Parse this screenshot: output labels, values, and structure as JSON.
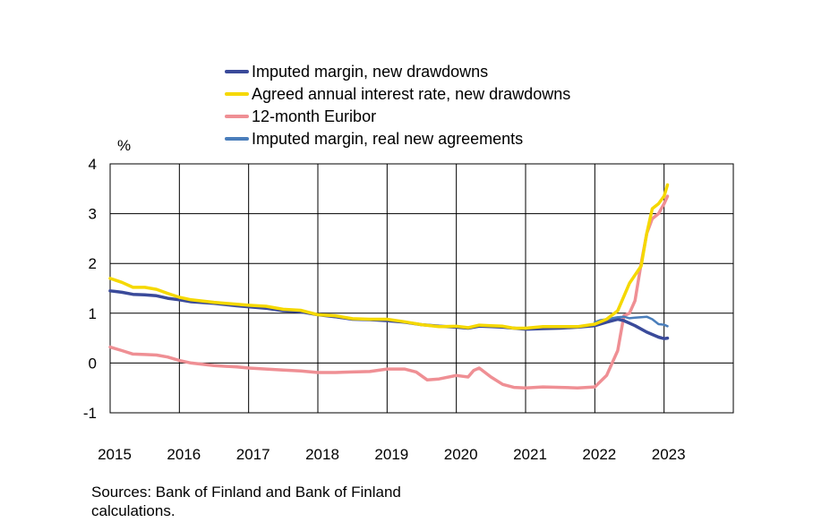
{
  "chart_data": {
    "type": "line",
    "ylabel": "%",
    "ylim": [
      -1,
      4
    ],
    "yticks": [
      4,
      3,
      2,
      1,
      0,
      -1
    ],
    "xlim": [
      2015,
      2024
    ],
    "xticks": [
      "2015",
      "2016",
      "2017",
      "2018",
      "2019",
      "2020",
      "2021",
      "2022",
      "2023"
    ],
    "grid": true,
    "legend": "top",
    "series": [
      {
        "name": "Imputed margin, new drawdowns",
        "color": "#3a4a9a",
        "points": [
          [
            2015.0,
            1.45
          ],
          [
            2015.17,
            1.42
          ],
          [
            2015.33,
            1.38
          ],
          [
            2015.5,
            1.37
          ],
          [
            2015.67,
            1.35
          ],
          [
            2015.83,
            1.3
          ],
          [
            2016.0,
            1.27
          ],
          [
            2016.17,
            1.23
          ],
          [
            2016.5,
            1.2
          ],
          [
            2016.83,
            1.15
          ],
          [
            2017.0,
            1.13
          ],
          [
            2017.25,
            1.1
          ],
          [
            2017.5,
            1.05
          ],
          [
            2017.75,
            1.03
          ],
          [
            2018.0,
            0.97
          ],
          [
            2018.25,
            0.93
          ],
          [
            2018.5,
            0.88
          ],
          [
            2018.75,
            0.87
          ],
          [
            2019.0,
            0.85
          ],
          [
            2019.25,
            0.82
          ],
          [
            2019.5,
            0.77
          ],
          [
            2019.75,
            0.74
          ],
          [
            2020.0,
            0.72
          ],
          [
            2020.17,
            0.7
          ],
          [
            2020.33,
            0.74
          ],
          [
            2020.5,
            0.73
          ],
          [
            2020.67,
            0.72
          ],
          [
            2020.83,
            0.7
          ],
          [
            2021.0,
            0.68
          ],
          [
            2021.25,
            0.69
          ],
          [
            2021.5,
            0.7
          ],
          [
            2021.75,
            0.72
          ],
          [
            2022.0,
            0.75
          ],
          [
            2022.17,
            0.82
          ],
          [
            2022.33,
            0.88
          ],
          [
            2022.42,
            0.85
          ],
          [
            2022.58,
            0.75
          ],
          [
            2022.75,
            0.62
          ],
          [
            2022.92,
            0.52
          ],
          [
            2023.0,
            0.49
          ],
          [
            2023.05,
            0.5
          ]
        ]
      },
      {
        "name": "Agreed annual interest rate, new drawdowns",
        "color": "#f5d800",
        "points": [
          [
            2015.0,
            1.7
          ],
          [
            2015.17,
            1.62
          ],
          [
            2015.33,
            1.52
          ],
          [
            2015.5,
            1.52
          ],
          [
            2015.67,
            1.48
          ],
          [
            2015.83,
            1.4
          ],
          [
            2016.0,
            1.32
          ],
          [
            2016.17,
            1.27
          ],
          [
            2016.5,
            1.22
          ],
          [
            2016.83,
            1.18
          ],
          [
            2017.0,
            1.16
          ],
          [
            2017.25,
            1.14
          ],
          [
            2017.5,
            1.08
          ],
          [
            2017.75,
            1.06
          ],
          [
            2018.0,
            0.97
          ],
          [
            2018.25,
            0.95
          ],
          [
            2018.5,
            0.89
          ],
          [
            2018.75,
            0.88
          ],
          [
            2019.0,
            0.88
          ],
          [
            2019.25,
            0.83
          ],
          [
            2019.5,
            0.77
          ],
          [
            2019.75,
            0.73
          ],
          [
            2020.0,
            0.74
          ],
          [
            2020.17,
            0.71
          ],
          [
            2020.33,
            0.76
          ],
          [
            2020.5,
            0.75
          ],
          [
            2020.67,
            0.74
          ],
          [
            2020.83,
            0.7
          ],
          [
            2021.0,
            0.7
          ],
          [
            2021.25,
            0.73
          ],
          [
            2021.5,
            0.73
          ],
          [
            2021.75,
            0.73
          ],
          [
            2022.0,
            0.78
          ],
          [
            2022.17,
            0.88
          ],
          [
            2022.33,
            1.05
          ],
          [
            2022.5,
            1.6
          ],
          [
            2022.67,
            1.95
          ],
          [
            2022.75,
            2.6
          ],
          [
            2022.83,
            3.1
          ],
          [
            2022.92,
            3.2
          ],
          [
            2023.0,
            3.35
          ],
          [
            2023.05,
            3.58
          ]
        ]
      },
      {
        "name": "12-month Euribor",
        "color": "#ef8f94",
        "points": [
          [
            2015.0,
            0.32
          ],
          [
            2015.17,
            0.25
          ],
          [
            2015.33,
            0.18
          ],
          [
            2015.5,
            0.17
          ],
          [
            2015.67,
            0.16
          ],
          [
            2015.83,
            0.12
          ],
          [
            2016.0,
            0.05
          ],
          [
            2016.17,
            0.0
          ],
          [
            2016.5,
            -0.05
          ],
          [
            2016.83,
            -0.08
          ],
          [
            2017.0,
            -0.1
          ],
          [
            2017.25,
            -0.12
          ],
          [
            2017.5,
            -0.14
          ],
          [
            2017.75,
            -0.16
          ],
          [
            2018.0,
            -0.19
          ],
          [
            2018.25,
            -0.19
          ],
          [
            2018.5,
            -0.18
          ],
          [
            2018.75,
            -0.17
          ],
          [
            2019.0,
            -0.12
          ],
          [
            2019.25,
            -0.12
          ],
          [
            2019.42,
            -0.18
          ],
          [
            2019.58,
            -0.34
          ],
          [
            2019.75,
            -0.32
          ],
          [
            2020.0,
            -0.25
          ],
          [
            2020.17,
            -0.28
          ],
          [
            2020.25,
            -0.15
          ],
          [
            2020.33,
            -0.1
          ],
          [
            2020.5,
            -0.28
          ],
          [
            2020.67,
            -0.43
          ],
          [
            2020.83,
            -0.49
          ],
          [
            2021.0,
            -0.5
          ],
          [
            2021.25,
            -0.48
          ],
          [
            2021.5,
            -0.49
          ],
          [
            2021.75,
            -0.5
          ],
          [
            2022.0,
            -0.48
          ],
          [
            2022.17,
            -0.25
          ],
          [
            2022.33,
            0.25
          ],
          [
            2022.42,
            0.95
          ],
          [
            2022.5,
            1.0
          ],
          [
            2022.58,
            1.25
          ],
          [
            2022.67,
            2.0
          ],
          [
            2022.75,
            2.6
          ],
          [
            2022.83,
            2.9
          ],
          [
            2022.92,
            3.0
          ],
          [
            2023.0,
            3.2
          ],
          [
            2023.05,
            3.35
          ]
        ]
      },
      {
        "name": "Imputed margin, real new agreements",
        "color": "#4a7ebb",
        "points": [
          [
            2022.0,
            0.82
          ],
          [
            2022.08,
            0.86
          ],
          [
            2022.17,
            0.88
          ],
          [
            2022.25,
            0.9
          ],
          [
            2022.33,
            0.92
          ],
          [
            2022.42,
            0.93
          ],
          [
            2022.5,
            0.9
          ],
          [
            2022.58,
            0.91
          ],
          [
            2022.67,
            0.92
          ],
          [
            2022.75,
            0.93
          ],
          [
            2022.83,
            0.88
          ],
          [
            2022.92,
            0.78
          ],
          [
            2023.0,
            0.77
          ],
          [
            2023.05,
            0.74
          ]
        ]
      }
    ]
  },
  "source_note": "Sources: Bank of Finland and Bank of Finland calculations."
}
